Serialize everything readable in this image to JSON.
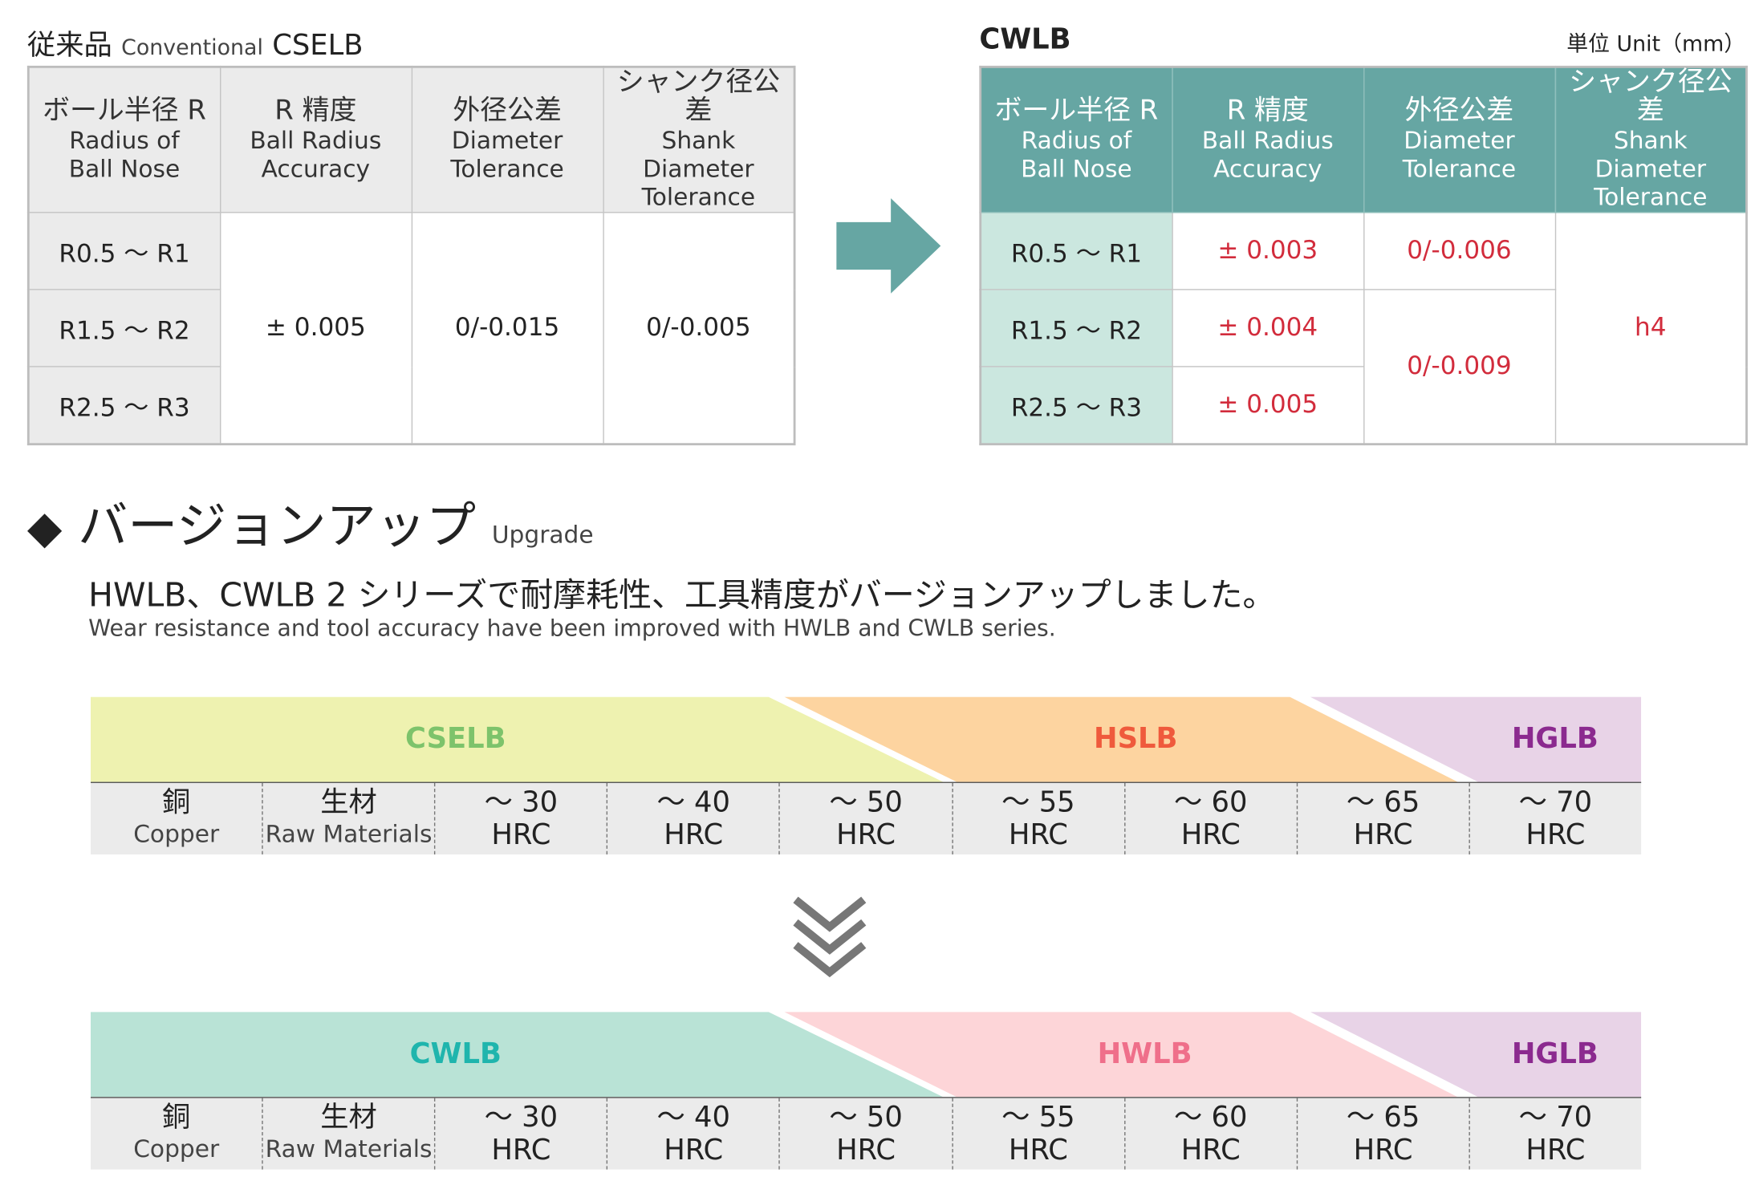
{
  "conventional": {
    "title_jp": "従来品",
    "title_en": "Conventional",
    "title_model": "CSELB",
    "headers": [
      {
        "jp": "ボール半径 R",
        "en1": "Radius of",
        "en2": "Ball Nose"
      },
      {
        "jp": "R 精度",
        "en1": "Ball Radius",
        "en2": "Accuracy"
      },
      {
        "jp": "外径公差",
        "en1": "Diameter",
        "en2": "Tolerance"
      },
      {
        "jp": "シャンク径公差",
        "en1": "Shank Diameter",
        "en2": "Tolerance"
      }
    ],
    "radii": [
      "R0.5 ～ R1",
      "R1.5 ～ R2",
      "R2.5 ～ R3"
    ],
    "accuracy": "± 0.005",
    "diameter_tolerance": "0/-0.015",
    "shank_tolerance": "0/-0.005"
  },
  "new": {
    "title_model": "CWLB",
    "unit": "単位 Unit（mm）",
    "headers": [
      {
        "jp": "ボール半径 R",
        "en1": "Radius of",
        "en2": "Ball Nose"
      },
      {
        "jp": "R 精度",
        "en1": "Ball Radius",
        "en2": "Accuracy"
      },
      {
        "jp": "外径公差",
        "en1": "Diameter",
        "en2": "Tolerance"
      },
      {
        "jp": "シャンク径公差",
        "en1": "Shank Diameter",
        "en2": "Tolerance"
      }
    ],
    "radii": [
      "R0.5 ～ R1",
      "R1.5 ～ R2",
      "R2.5 ～ R3"
    ],
    "accuracy": [
      "± 0.003",
      "± 0.004",
      "± 0.005"
    ],
    "diameter_tolerance": [
      "0/-0.006",
      "0/-0.009"
    ],
    "shank_tolerance": "h4"
  },
  "upgrade": {
    "heading_jp": "バージョンアップ",
    "heading_en": "Upgrade",
    "subtitle_jp": "HWLB、CWLB 2 シリーズで耐摩耗性、工具精度がバージョンアップしました。",
    "subtitle_en": "Wear resistance and tool accuracy have been improved with HWLB and CWLB series."
  },
  "scale": [
    {
      "top": "銅",
      "bottom": "Copper"
    },
    {
      "top": "生材",
      "bottom": "Raw Materials"
    },
    {
      "top": "～ 30",
      "bottom": "HRC"
    },
    {
      "top": "～ 40",
      "bottom": "HRC"
    },
    {
      "top": "～ 50",
      "bottom": "HRC"
    },
    {
      "top": "～ 55",
      "bottom": "HRC"
    },
    {
      "top": "～ 60",
      "bottom": "HRC"
    },
    {
      "top": "～ 65",
      "bottom": "HRC"
    },
    {
      "top": "～ 70",
      "bottom": "HRC"
    }
  ],
  "band_before": [
    {
      "label": "CSELB",
      "fill": "#eef2b0",
      "text": "#7dc36b"
    },
    {
      "label": "HSLB",
      "fill": "#fdd4a0",
      "text": "#ef5a3c"
    },
    {
      "label": "HGLB",
      "fill": "#e8d3e7",
      "text": "#8b2a8f"
    }
  ],
  "band_after": [
    {
      "label": "CWLB",
      "fill": "#b9e3d6",
      "text": "#1fb5ad"
    },
    {
      "label": "HWLB",
      "fill": "#fdd5d8",
      "text": "#ef6f8a"
    },
    {
      "label": "HGLB",
      "fill": "#e8d3e7",
      "text": "#8b2a8f"
    }
  ],
  "colors": {
    "teal": "#66a6a3",
    "red": "#d22c3c"
  }
}
